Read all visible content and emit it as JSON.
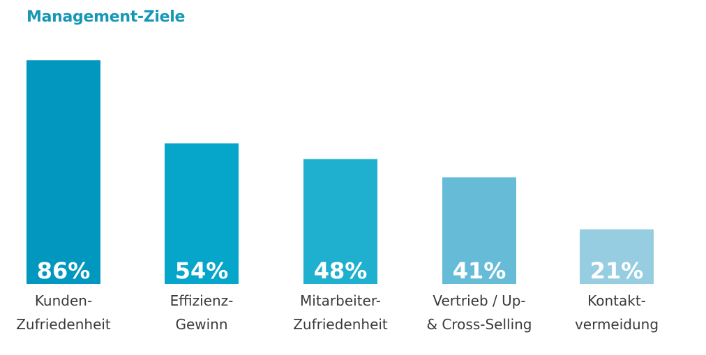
{
  "title": "Management-Ziele",
  "colors": {
    "title": "#1797b5",
    "bars": [
      "#0197be",
      "#05a6c9",
      "#1fb0cf",
      "#66bcd7",
      "#96cde1"
    ]
  },
  "chart_data": {
    "type": "bar",
    "title": "Management-Ziele",
    "categories": [
      [
        "Kunden-",
        "Zufriedenheit"
      ],
      [
        "Effizienz-",
        "Gewinn"
      ],
      [
        "Mitarbeiter-",
        "Zufriedenheit"
      ],
      [
        "Vertrieb / Up-",
        "& Cross-Selling"
      ],
      [
        "Kontakt-",
        "vermeidung"
      ]
    ],
    "values": [
      86,
      54,
      48,
      41,
      21
    ],
    "value_labels": [
      "86%",
      "54%",
      "48%",
      "41%",
      "21%"
    ],
    "ylim": [
      0,
      100
    ],
    "grid": false,
    "legend": "none"
  }
}
